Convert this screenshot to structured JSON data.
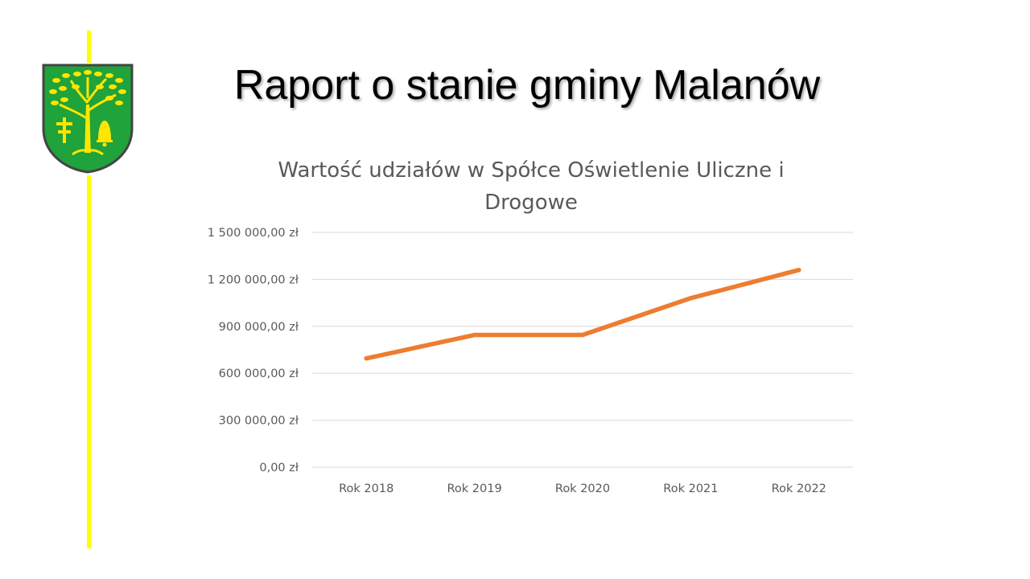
{
  "slide": {
    "title": "Raport o stanie gminy Malanów"
  },
  "colors": {
    "accent_line": "#ffff00",
    "series_line": "#ed7d31",
    "gridline": "#d9d9d9",
    "axis_text": "#595959",
    "crest_green": "#1fa33a",
    "crest_yellow": "#ffe600"
  },
  "crest": {
    "icon": "coat-of-arms-icon"
  },
  "chart_data": {
    "type": "line",
    "title": "Wartość udziałów w Spółce Oświetlenie Uliczne i Drogowe",
    "categories": [
      "Rok 2018",
      "Rok 2019",
      "Rok 2020",
      "Rok 2021",
      "Rok 2022"
    ],
    "series": [
      {
        "values": [
          695000,
          845000,
          845000,
          1080000,
          1260000
        ]
      }
    ],
    "ylim": [
      0,
      1500000
    ],
    "yticks": [
      0,
      300000,
      600000,
      900000,
      1200000,
      1500000
    ],
    "ytick_labels": [
      "0,00 zł",
      "300 000,00 zł",
      "600 000,00 zł",
      "900 000,00 zł",
      "1 200 000,00 zł",
      "1 500 000,00 zł"
    ],
    "grid": true,
    "legend": "none"
  }
}
